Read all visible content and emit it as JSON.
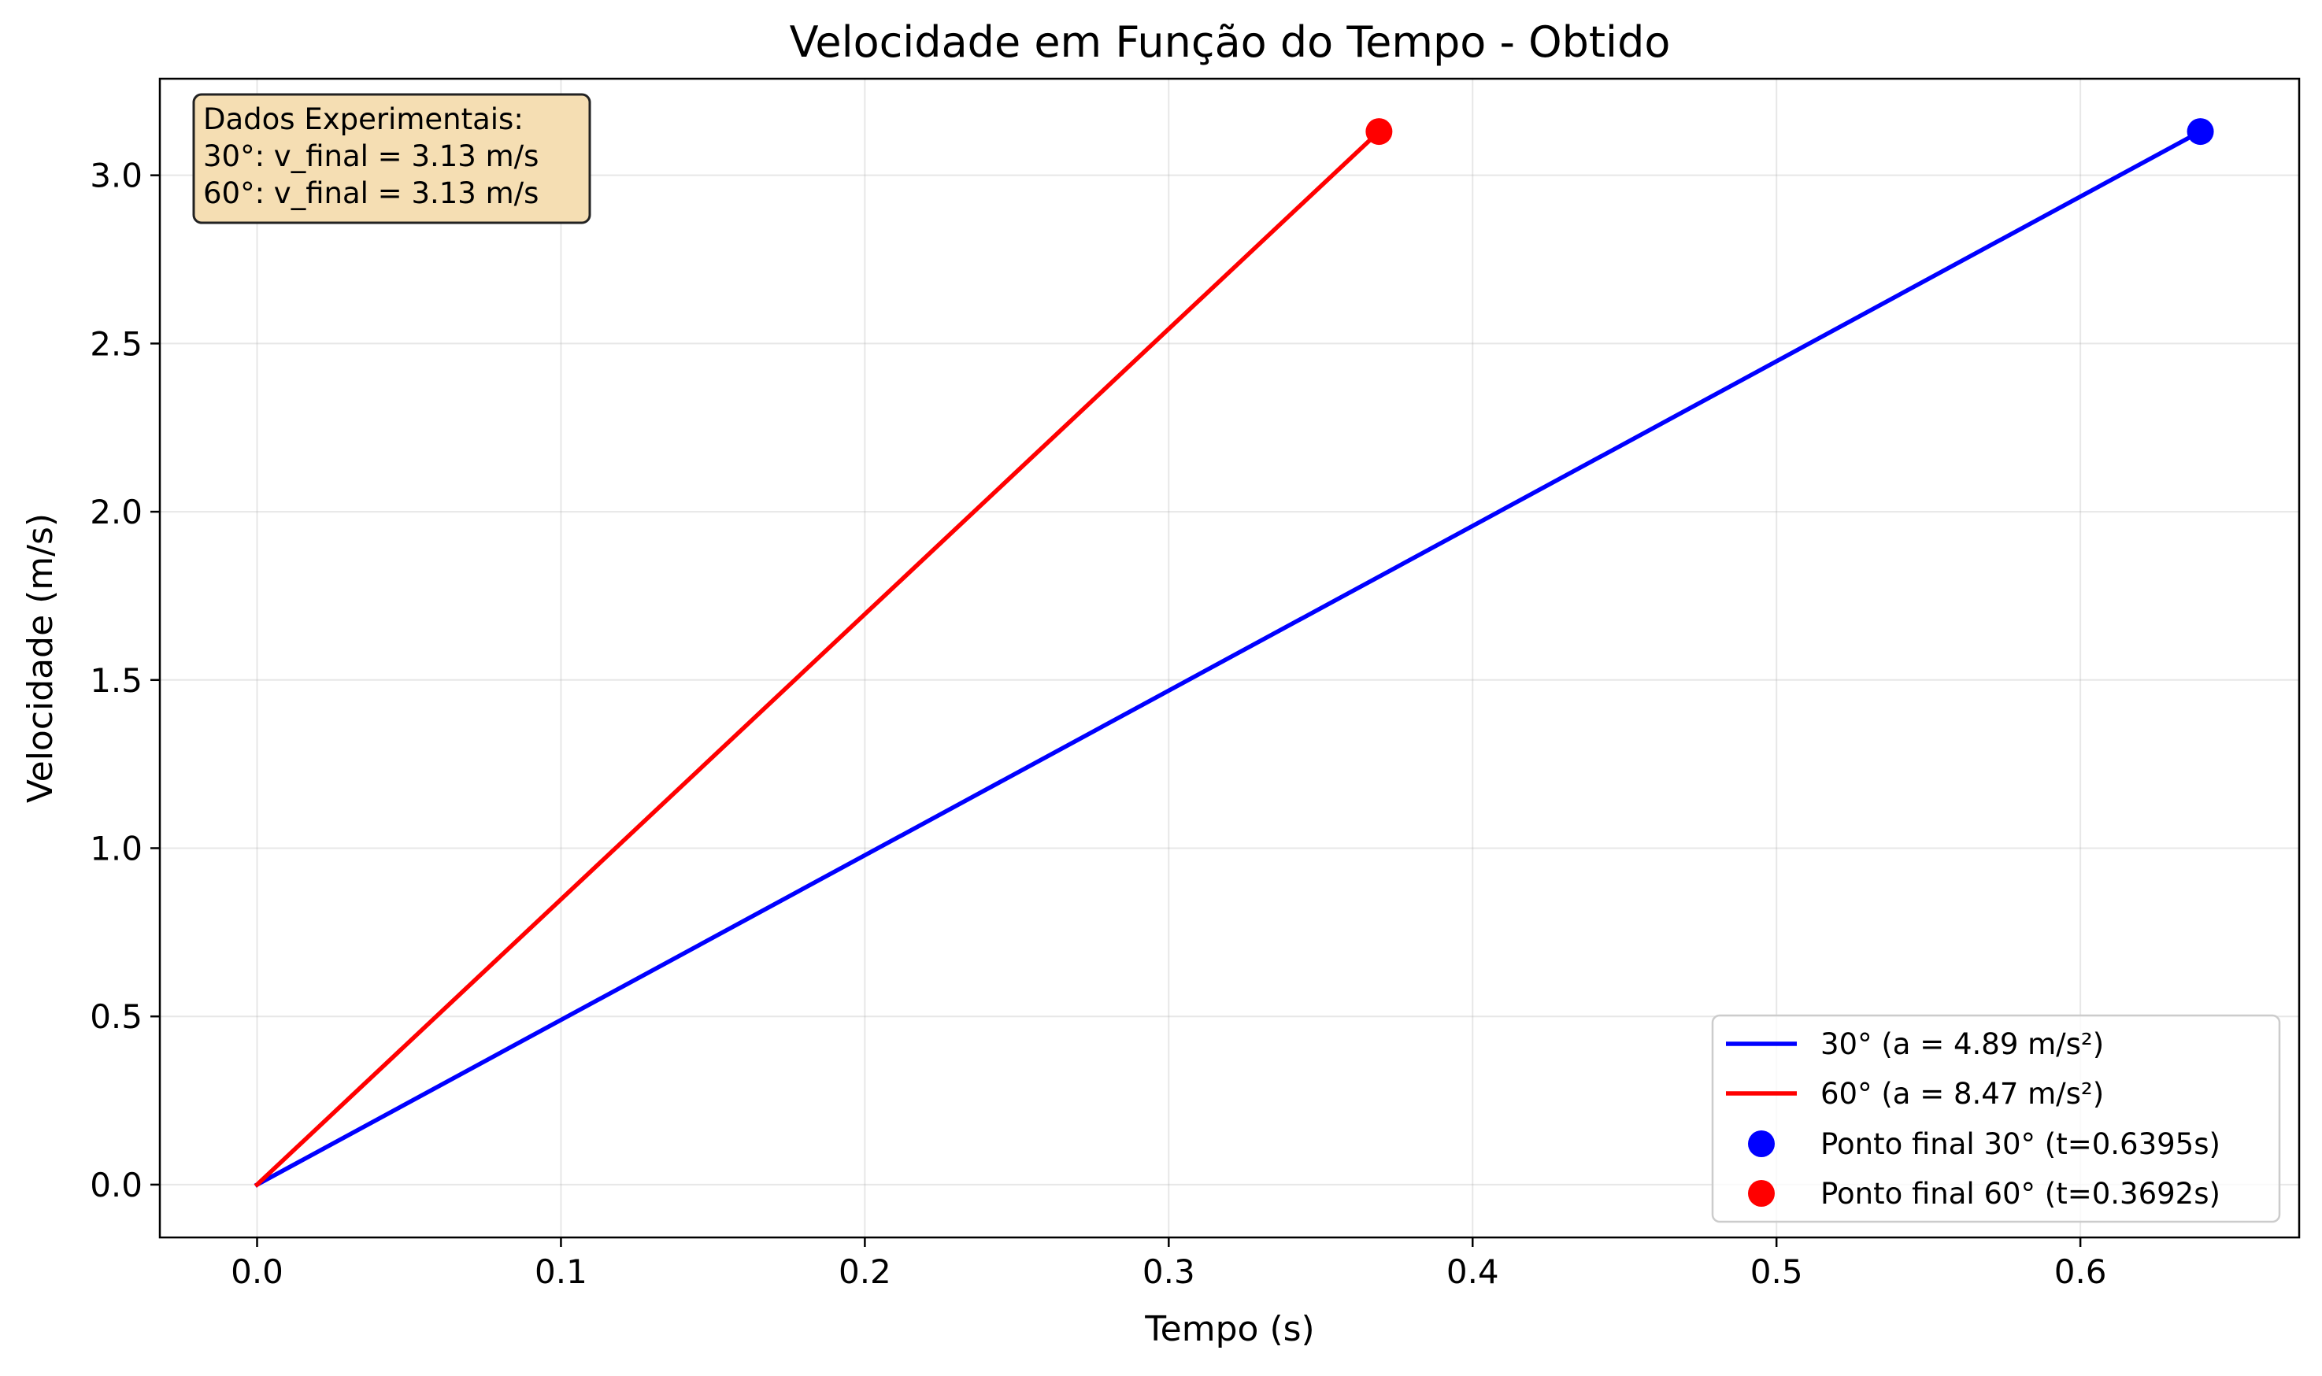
{
  "chart_data": {
    "type": "line",
    "title": "Velocidade em Função do Tempo - Obtido",
    "xlabel": "Tempo (s)",
    "ylabel": "Velocidade (m/s)",
    "xlim": [
      -0.032,
      0.672
    ],
    "ylim": [
      -0.157,
      3.287
    ],
    "x_ticks": [
      "0.0",
      "0.1",
      "0.2",
      "0.3",
      "0.4",
      "0.5",
      "0.6"
    ],
    "x_tick_values": [
      0.0,
      0.1,
      0.2,
      0.3,
      0.4,
      0.5,
      0.6
    ],
    "y_ticks": [
      "0.0",
      "0.5",
      "1.0",
      "1.5",
      "2.0",
      "2.5",
      "3.0"
    ],
    "y_tick_values": [
      0.0,
      0.5,
      1.0,
      1.5,
      2.0,
      2.5,
      3.0
    ],
    "grid": true,
    "legend_position": "bottom-right",
    "series": [
      {
        "name": "30° (a = 4.89 m/s²)",
        "type": "line",
        "color": "#0000ff",
        "x": [
          0.0,
          0.6395
        ],
        "y": [
          0.0,
          3.13
        ]
      },
      {
        "name": "60° (a = 8.47 m/s²)",
        "type": "line",
        "color": "#ff0000",
        "x": [
          0.0,
          0.3692
        ],
        "y": [
          0.0,
          3.13
        ]
      },
      {
        "name": "Ponto final 30° (t=0.6395s)",
        "type": "point",
        "color": "#0000ff",
        "x": [
          0.6395
        ],
        "y": [
          3.13
        ]
      },
      {
        "name": "Ponto final 60° (t=0.3692s)",
        "type": "point",
        "color": "#ff0000",
        "x": [
          0.3692
        ],
        "y": [
          3.13
        ]
      }
    ],
    "annotation": {
      "lines": [
        "Dados Experimentais:",
        "30°: v_final = 3.13 m/s",
        "60°: v_final = 3.13 m/s"
      ],
      "background": "#f5deb3",
      "position": "top-left"
    }
  }
}
